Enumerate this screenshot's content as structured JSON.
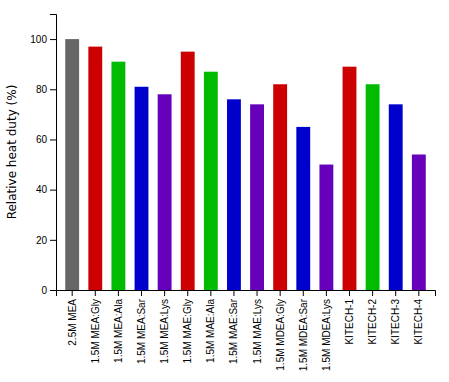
{
  "chart_data": {
    "type": "bar",
    "categories": [
      "2.5M MEA",
      "1.5M MEA:Gly",
      "1.5M MEA:Ala",
      "1.5M MEA:Sar",
      "1.5M MEA:Lys",
      "1.5M MAE:Gly",
      "1.5M MAE:Ala",
      "1.5M MAE:Sar",
      "1.5M MAE:Lys",
      "1.5M MDEA:Gly",
      "1.5M MDEA:Sar",
      "1.5M MDEA:Lys",
      "KITECH-1",
      "KITECH-2",
      "KITECH-3",
      "KITECH-4"
    ],
    "values": [
      100,
      97,
      91,
      81,
      78,
      95,
      87,
      76,
      74,
      82,
      65,
      50,
      89,
      82,
      74,
      54
    ],
    "colors": [
      "#666666",
      "#cc0000",
      "#00bb00",
      "#0000cc",
      "#6600bb",
      "#cc0000",
      "#00bb00",
      "#0000cc",
      "#6600bb",
      "#cc0000",
      "#0000cc",
      "#6600bb",
      "#cc0000",
      "#00bb00",
      "#0000cc",
      "#6600bb"
    ],
    "ylabel": "Relative heat duty (%)",
    "ylim": [
      0,
      110
    ],
    "yticks": [
      0,
      20,
      40,
      60,
      80,
      100
    ]
  }
}
